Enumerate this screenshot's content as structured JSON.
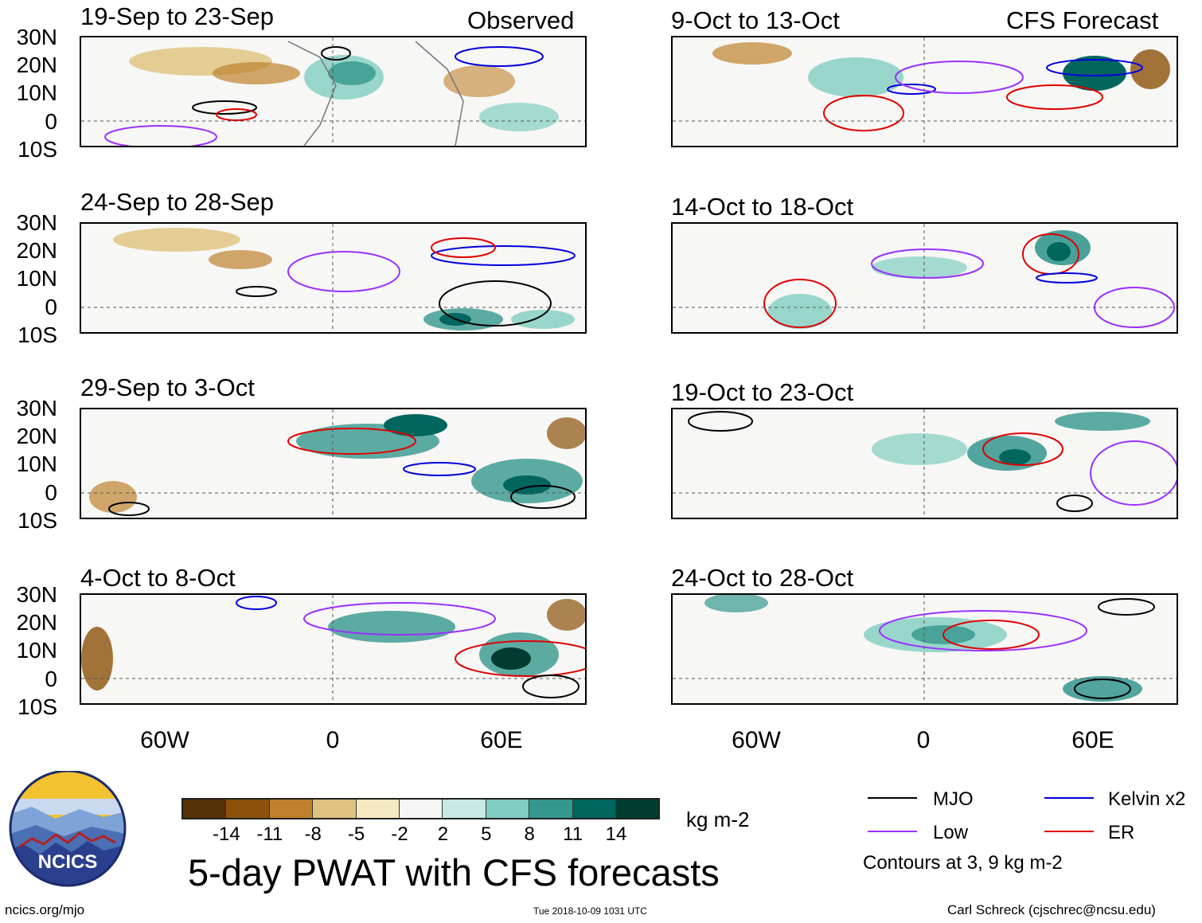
{
  "figure_title": "5-day PWAT with CFS forecasts",
  "column_labels": {
    "observed": "Observed",
    "forecast": "CFS Forecast"
  },
  "panels": [
    {
      "period": "19-Sep to 23-Sep",
      "column": "observed"
    },
    {
      "period": "24-Sep to 28-Sep",
      "column": "observed"
    },
    {
      "period": "29-Sep to 3-Oct",
      "column": "observed"
    },
    {
      "period": "4-Oct to 8-Oct",
      "column": "observed"
    },
    {
      "period": "9-Oct to 13-Oct",
      "column": "forecast"
    },
    {
      "period": "14-Oct to 18-Oct",
      "column": "forecast"
    },
    {
      "period": "19-Oct to 23-Oct",
      "column": "forecast"
    },
    {
      "period": "24-Oct to 28-Oct",
      "column": "forecast"
    }
  ],
  "lat_labels": [
    "30N",
    "20N",
    "10N",
    "0",
    "10S"
  ],
  "lon_labels": [
    "60W",
    "0",
    "60E"
  ],
  "colorbar": {
    "ticks": [
      "-14",
      "-11",
      "-8",
      "-5",
      "-2",
      "2",
      "5",
      "8",
      "11",
      "14"
    ],
    "colors": [
      "#543005",
      "#8c510a",
      "#bf812d",
      "#dfc27d",
      "#f6e8c3",
      "#f5f5f5",
      "#c7eae5",
      "#80cdc1",
      "#35978f",
      "#01665e",
      "#003c30"
    ],
    "units": "kg m-2"
  },
  "legend": {
    "items": [
      {
        "label": "MJO",
        "color": "#000000"
      },
      {
        "label": "Kelvin x2",
        "color": "#0000dd"
      },
      {
        "label": "Low",
        "color": "#9b30ff"
      },
      {
        "label": "ER",
        "color": "#e00000"
      }
    ],
    "note": "Contours at 3, 9 kg m-2"
  },
  "logo": {
    "text": "NCICS"
  },
  "footer": {
    "website": "ncics.org/mjo",
    "timestamp": "Tue 2018-10-09 1031 UTC",
    "credit": "Carl Schreck (cjschrec@ncsu.edu)"
  }
}
